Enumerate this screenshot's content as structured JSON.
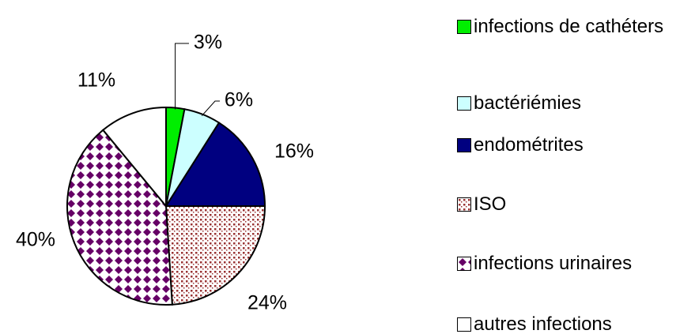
{
  "chart_data": {
    "type": "pie",
    "categories": [
      "infections de cathéters",
      "bactériémies",
      "endométrites",
      "ISO",
      "infections urinaires",
      "autres infections"
    ],
    "values": [
      3,
      6,
      16,
      24,
      40,
      11
    ],
    "value_labels": [
      "3%",
      "6%",
      "16%",
      "24%",
      "40%",
      "11%"
    ],
    "colors": [
      "#00ee00",
      "#ccffff",
      "#000080",
      "#993333",
      "#660066",
      "#ffffff"
    ],
    "patterns": [
      null,
      null,
      null,
      "dots",
      "diamonds",
      null
    ],
    "legend": "right"
  }
}
